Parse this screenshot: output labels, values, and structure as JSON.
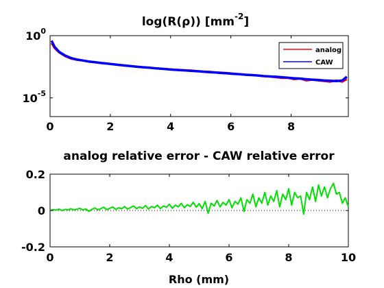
{
  "chart_data": [
    {
      "type": "line",
      "title_main": "log(R(",
      "title_rho": "ρ",
      "title_mid": ")) [mm",
      "title_sup": "-2",
      "title_end": "]",
      "yscale": "log",
      "xlim": [
        0,
        9.9
      ],
      "ylim_exp": [
        -6.5,
        0
      ],
      "xticks": [
        0,
        2,
        4,
        6,
        8
      ],
      "xtick_labels": [
        "0",
        "2",
        "4",
        "6",
        "8"
      ],
      "yticks_exp": [
        0,
        -5
      ],
      "ytick_base": "10",
      "ytick_sup": [
        "0",
        "-5"
      ],
      "legend": {
        "position": "top-right",
        "entries": [
          "analog",
          "CAW"
        ]
      },
      "colors": {
        "analog": "#ff0000",
        "CAW": "#0000ff"
      },
      "series": [
        {
          "name": "analog",
          "x": [
            0.05,
            0.15,
            0.3,
            0.5,
            0.7,
            0.9,
            1.1,
            1.3,
            1.5,
            1.7,
            1.9,
            2.1,
            2.3,
            2.5,
            2.7,
            2.9,
            3.1,
            3.3,
            3.5,
            3.7,
            3.9,
            4.1,
            4.3,
            4.5,
            4.7,
            4.9,
            5.1,
            5.3,
            5.5,
            5.7,
            5.9,
            6.1,
            6.3,
            6.5,
            6.7,
            6.9,
            7.1,
            7.3,
            7.5,
            7.7,
            7.9,
            8.1,
            8.3,
            8.5,
            8.7,
            8.9,
            9.1,
            9.3,
            9.5,
            9.7,
            9.85
          ],
          "y_exp": [
            -0.6,
            -1.0,
            -1.35,
            -1.65,
            -1.85,
            -1.95,
            -2.0,
            -2.1,
            -2.15,
            -2.2,
            -2.25,
            -2.3,
            -2.35,
            -2.4,
            -2.45,
            -2.5,
            -2.55,
            -2.58,
            -2.62,
            -2.65,
            -2.68,
            -2.72,
            -2.75,
            -2.78,
            -2.8,
            -2.85,
            -2.88,
            -2.9,
            -2.95,
            -2.97,
            -3.0,
            -3.05,
            -3.1,
            -3.15,
            -3.15,
            -3.2,
            -3.25,
            -3.3,
            -3.35,
            -3.4,
            -3.4,
            -3.5,
            -3.45,
            -3.6,
            -3.55,
            -3.6,
            -3.65,
            -3.7,
            -3.6,
            -3.7,
            -3.5
          ]
        },
        {
          "name": "CAW",
          "x": [
            0.05,
            0.15,
            0.3,
            0.5,
            0.7,
            0.9,
            1.1,
            1.3,
            1.5,
            1.7,
            1.9,
            2.1,
            2.3,
            2.5,
            2.7,
            2.9,
            3.1,
            3.3,
            3.5,
            3.7,
            3.9,
            4.1,
            4.3,
            4.5,
            4.7,
            4.9,
            5.1,
            5.3,
            5.5,
            5.7,
            5.9,
            6.1,
            6.3,
            6.5,
            6.7,
            6.9,
            7.1,
            7.3,
            7.5,
            7.7,
            7.9,
            8.1,
            8.3,
            8.5,
            8.7,
            8.9,
            9.1,
            9.3,
            9.5,
            9.7,
            9.85
          ],
          "y_exp": [
            -0.4,
            -0.9,
            -1.3,
            -1.6,
            -1.8,
            -1.92,
            -2.0,
            -2.08,
            -2.14,
            -2.2,
            -2.25,
            -2.3,
            -2.35,
            -2.4,
            -2.45,
            -2.5,
            -2.54,
            -2.58,
            -2.62,
            -2.66,
            -2.7,
            -2.74,
            -2.77,
            -2.8,
            -2.83,
            -2.86,
            -2.9,
            -2.93,
            -2.96,
            -3.0,
            -3.03,
            -3.07,
            -3.1,
            -3.14,
            -3.17,
            -3.2,
            -3.25,
            -3.28,
            -3.3,
            -3.34,
            -3.38,
            -3.42,
            -3.45,
            -3.5,
            -3.53,
            -3.56,
            -3.6,
            -3.62,
            -3.65,
            -3.6,
            -3.3
          ]
        }
      ]
    },
    {
      "type": "line",
      "title": "analog relative error - CAW relative error",
      "xlabel": "Rho (mm)",
      "xlim": [
        0,
        10
      ],
      "ylim": [
        -0.2,
        0.2
      ],
      "xticks": [
        0,
        2,
        4,
        6,
        8,
        10
      ],
      "xtick_labels": [
        "0",
        "2",
        "4",
        "6",
        "8",
        "10"
      ],
      "yticks": [
        -0.2,
        0,
        0.2
      ],
      "ytick_labels": [
        "-0.2",
        "0",
        "0.2"
      ],
      "reference_line": 0,
      "colors": {
        "line": "#00e000"
      },
      "series": [
        {
          "x": [
            0,
            0.1,
            0.2,
            0.3,
            0.4,
            0.5,
            0.6,
            0.7,
            0.8,
            0.9,
            1.0,
            1.1,
            1.2,
            1.3,
            1.4,
            1.5,
            1.6,
            1.7,
            1.8,
            1.9,
            2.0,
            2.1,
            2.2,
            2.3,
            2.4,
            2.5,
            2.6,
            2.7,
            2.8,
            2.9,
            3.0,
            3.1,
            3.2,
            3.3,
            3.4,
            3.5,
            3.6,
            3.7,
            3.8,
            3.9,
            4.0,
            4.1,
            4.2,
            4.3,
            4.4,
            4.5,
            4.6,
            4.7,
            4.8,
            4.9,
            5.0,
            5.1,
            5.2,
            5.3,
            5.4,
            5.5,
            5.6,
            5.7,
            5.8,
            5.9,
            6.0,
            6.1,
            6.2,
            6.3,
            6.4,
            6.5,
            6.6,
            6.7,
            6.8,
            6.9,
            7.0,
            7.1,
            7.2,
            7.3,
            7.4,
            7.5,
            7.6,
            7.7,
            7.8,
            7.9,
            8.0,
            8.1,
            8.2,
            8.3,
            8.4,
            8.5,
            8.6,
            8.7,
            8.8,
            8.9,
            9.0,
            9.1,
            9.2,
            9.3,
            9.4,
            9.5,
            9.6,
            9.7,
            9.8,
            9.9,
            10.0
          ],
          "y": [
            0.0,
            0.005,
            0.002,
            0.008,
            0.0,
            0.006,
            0.003,
            0.01,
            0.004,
            0.007,
            0.012,
            0.003,
            0.009,
            -0.005,
            0.006,
            0.014,
            0.004,
            0.01,
            0.018,
            0.005,
            0.012,
            0.02,
            0.006,
            0.015,
            0.01,
            0.022,
            0.008,
            0.016,
            0.025,
            0.01,
            0.02,
            0.012,
            0.028,
            0.008,
            0.022,
            0.015,
            0.03,
            0.01,
            0.025,
            0.018,
            0.035,
            0.012,
            0.03,
            0.02,
            0.04,
            0.015,
            0.032,
            0.022,
            0.045,
            0.018,
            0.038,
            0.01,
            0.05,
            -0.015,
            0.04,
            0.025,
            0.055,
            0.02,
            0.045,
            0.03,
            0.06,
            0.015,
            0.05,
            0.035,
            0.07,
            -0.005,
            0.06,
            0.04,
            0.09,
            0.02,
            0.07,
            0.04,
            0.1,
            0.03,
            0.08,
            0.05,
            0.11,
            0.02,
            0.09,
            0.06,
            0.12,
            0.03,
            0.1,
            0.07,
            0.08,
            -0.02,
            0.1,
            0.06,
            0.13,
            0.05,
            0.14,
            0.08,
            0.13,
            0.07,
            0.12,
            0.15,
            0.09,
            0.1,
            0.04,
            0.07,
            0.02
          ]
        }
      ]
    }
  ]
}
